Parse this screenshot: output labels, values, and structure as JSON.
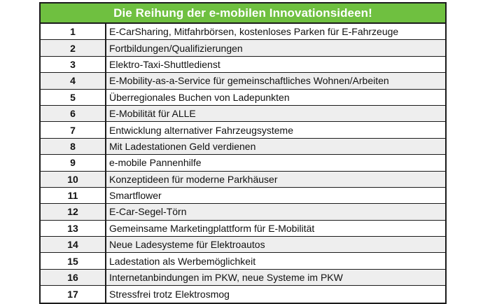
{
  "table": {
    "title": "Die Reihung der e-mobilen Innovationsideen!",
    "header_color": "#6fc040",
    "rows": [
      {
        "rank": "1",
        "idea": "E-CarSharing, Mitfahrbörsen, kostenloses Parken für E-Fahrzeuge"
      },
      {
        "rank": "2",
        "idea": "Fortbildungen/Qualifizierungen"
      },
      {
        "rank": "3",
        "idea": "Elektro-Taxi-Shuttledienst"
      },
      {
        "rank": "4",
        "idea": "E-Mobility-as-a-Service für gemeinschaftliches Wohnen/Arbeiten"
      },
      {
        "rank": "5",
        "idea": "Überregionales Buchen von Ladepunkten"
      },
      {
        "rank": "6",
        "idea": "E-Mobilität für ALLE"
      },
      {
        "rank": "7",
        "idea": "Entwicklung alternativer Fahrzeugsysteme"
      },
      {
        "rank": "8",
        "idea": "Mit Ladestationen Geld verdienen"
      },
      {
        "rank": "9",
        "idea": "e-mobile Pannenhilfe"
      },
      {
        "rank": "10",
        "idea": "Konzeptideen für moderne Parkhäuser"
      },
      {
        "rank": "11",
        "idea": "Smartflower"
      },
      {
        "rank": "12",
        "idea": "E-Car-Segel-Törn"
      },
      {
        "rank": "13",
        "idea": "Gemeinsame Marketingplattform für E-Mobilität"
      },
      {
        "rank": "14",
        "idea": "Neue Ladesysteme für Elektroautos"
      },
      {
        "rank": "15",
        "idea": "Ladestation als Werbemöglichkeit"
      },
      {
        "rank": "16",
        "idea": "Internetanbindungen im PKW, neue Systeme im PKW"
      },
      {
        "rank": "17",
        "idea": "Stressfrei trotz Elektrosmog"
      }
    ]
  }
}
